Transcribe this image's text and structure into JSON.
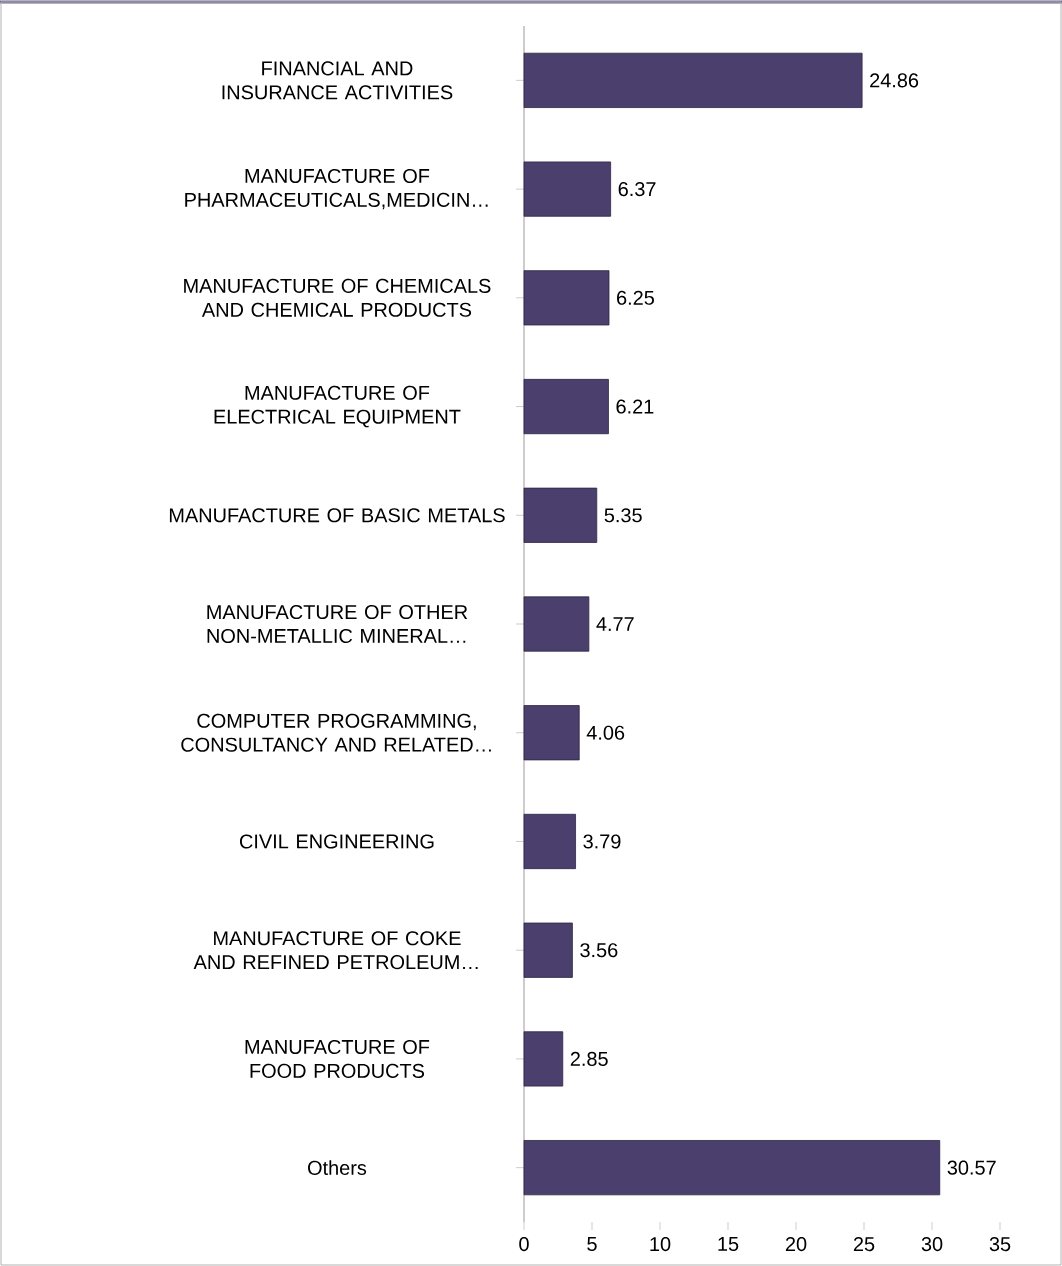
{
  "chart_data": {
    "type": "bar",
    "orientation": "horizontal",
    "categories": [
      "FINANCIAL AND INSURANCE ACTIVITIES",
      "MANUFACTURE OF PHARMACEUTICALS,MEDICIN…",
      "MANUFACTURE OF CHEMICALS AND CHEMICAL PRODUCTS",
      "MANUFACTURE OF ELECTRICAL EQUIPMENT",
      "MANUFACTURE OF BASIC METALS",
      "MANUFACTURE OF OTHER NON-METALLIC MINERAL…",
      "COMPUTER PROGRAMMING, CONSULTANCY AND RELATED…",
      "CIVIL ENGINEERING",
      "MANUFACTURE OF COKE AND REFINED PETROLEUM…",
      "MANUFACTURE OF FOOD PRODUCTS",
      "Others"
    ],
    "values": [
      24.86,
      6.37,
      6.25,
      6.21,
      5.35,
      4.77,
      4.06,
      3.79,
      3.56,
      2.85,
      30.57
    ],
    "color": "#4b3f6e",
    "xlim": [
      0,
      35
    ],
    "xticks": [
      0,
      5,
      10,
      15,
      20,
      25,
      30,
      35
    ],
    "data_labels": true
  }
}
